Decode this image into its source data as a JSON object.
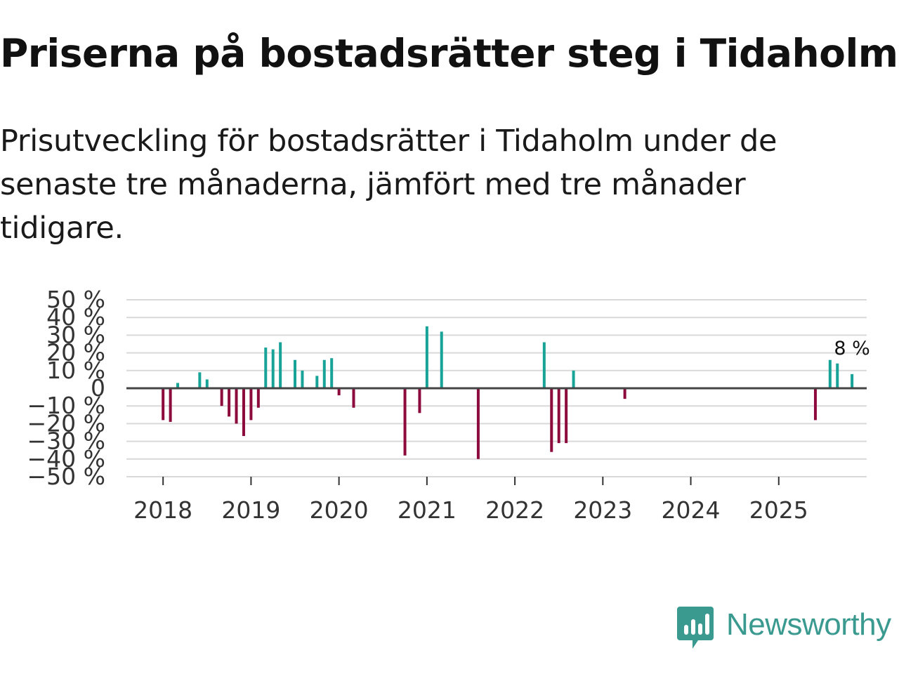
{
  "header": {
    "title": "Priserna på bostadsrätter steg i Tidaholm",
    "subtitle": "Prisutveckling för bostadsrätter i Tidaholm under de senaste tre månaderna, jämfört med tre månader tidigare."
  },
  "brand": {
    "name": "Newsworthy",
    "color": "#3a9a90"
  },
  "colors": {
    "positive": "#17a398",
    "negative": "#8c0a3c",
    "grid": "#d9d9d9",
    "zero_line": "#444444",
    "axis_text": "#333333"
  },
  "chart_data": {
    "type": "bar",
    "title": "Priserna på bostadsrätter steg i Tidaholm",
    "xlabel": "",
    "ylabel": "",
    "ylim": [
      -50,
      50
    ],
    "y_ticks": [
      50,
      40,
      30,
      20,
      10,
      0,
      -10,
      -20,
      -30,
      -40,
      -50
    ],
    "y_tick_labels": [
      "50 %",
      "40 %",
      "30 %",
      "20 %",
      "10 %",
      "0",
      "−10 %",
      "−20 %",
      "−30 %",
      "−40 %",
      "−50 %"
    ],
    "x_range": [
      "2017-08",
      "2026-01"
    ],
    "x_tick_labels": [
      "2018",
      "2019",
      "2020",
      "2021",
      "2022",
      "2023",
      "2024",
      "2025"
    ],
    "grid": true,
    "legend": "none",
    "annotation": {
      "text": "8 %",
      "month": "2025-11"
    },
    "series": [
      {
        "name": "Prisutveckling",
        "points": [
          {
            "month": "2018-01",
            "value": -18
          },
          {
            "month": "2018-02",
            "value": -19
          },
          {
            "month": "2018-03",
            "value": 3
          },
          {
            "month": "2018-06",
            "value": 9
          },
          {
            "month": "2018-07",
            "value": 5
          },
          {
            "month": "2018-09",
            "value": -10
          },
          {
            "month": "2018-10",
            "value": -16
          },
          {
            "month": "2018-11",
            "value": -20
          },
          {
            "month": "2018-12",
            "value": -27
          },
          {
            "month": "2019-01",
            "value": -18
          },
          {
            "month": "2019-02",
            "value": -11
          },
          {
            "month": "2019-03",
            "value": 23
          },
          {
            "month": "2019-04",
            "value": 22
          },
          {
            "month": "2019-05",
            "value": 26
          },
          {
            "month": "2019-07",
            "value": 16
          },
          {
            "month": "2019-08",
            "value": 10
          },
          {
            "month": "2019-10",
            "value": 7
          },
          {
            "month": "2019-11",
            "value": 16
          },
          {
            "month": "2019-12",
            "value": 17
          },
          {
            "month": "2020-01",
            "value": -4
          },
          {
            "month": "2020-03",
            "value": -11
          },
          {
            "month": "2020-10",
            "value": -38
          },
          {
            "month": "2020-12",
            "value": -14
          },
          {
            "month": "2021-01",
            "value": 35
          },
          {
            "month": "2021-03",
            "value": 32
          },
          {
            "month": "2021-08",
            "value": -40
          },
          {
            "month": "2022-05",
            "value": 26
          },
          {
            "month": "2022-06",
            "value": -36
          },
          {
            "month": "2022-07",
            "value": -31
          },
          {
            "month": "2022-08",
            "value": -31
          },
          {
            "month": "2022-09",
            "value": 10
          },
          {
            "month": "2023-04",
            "value": -6
          },
          {
            "month": "2025-06",
            "value": -18
          },
          {
            "month": "2025-08",
            "value": 16
          },
          {
            "month": "2025-09",
            "value": 14
          },
          {
            "month": "2025-11",
            "value": 8
          }
        ]
      }
    ]
  }
}
